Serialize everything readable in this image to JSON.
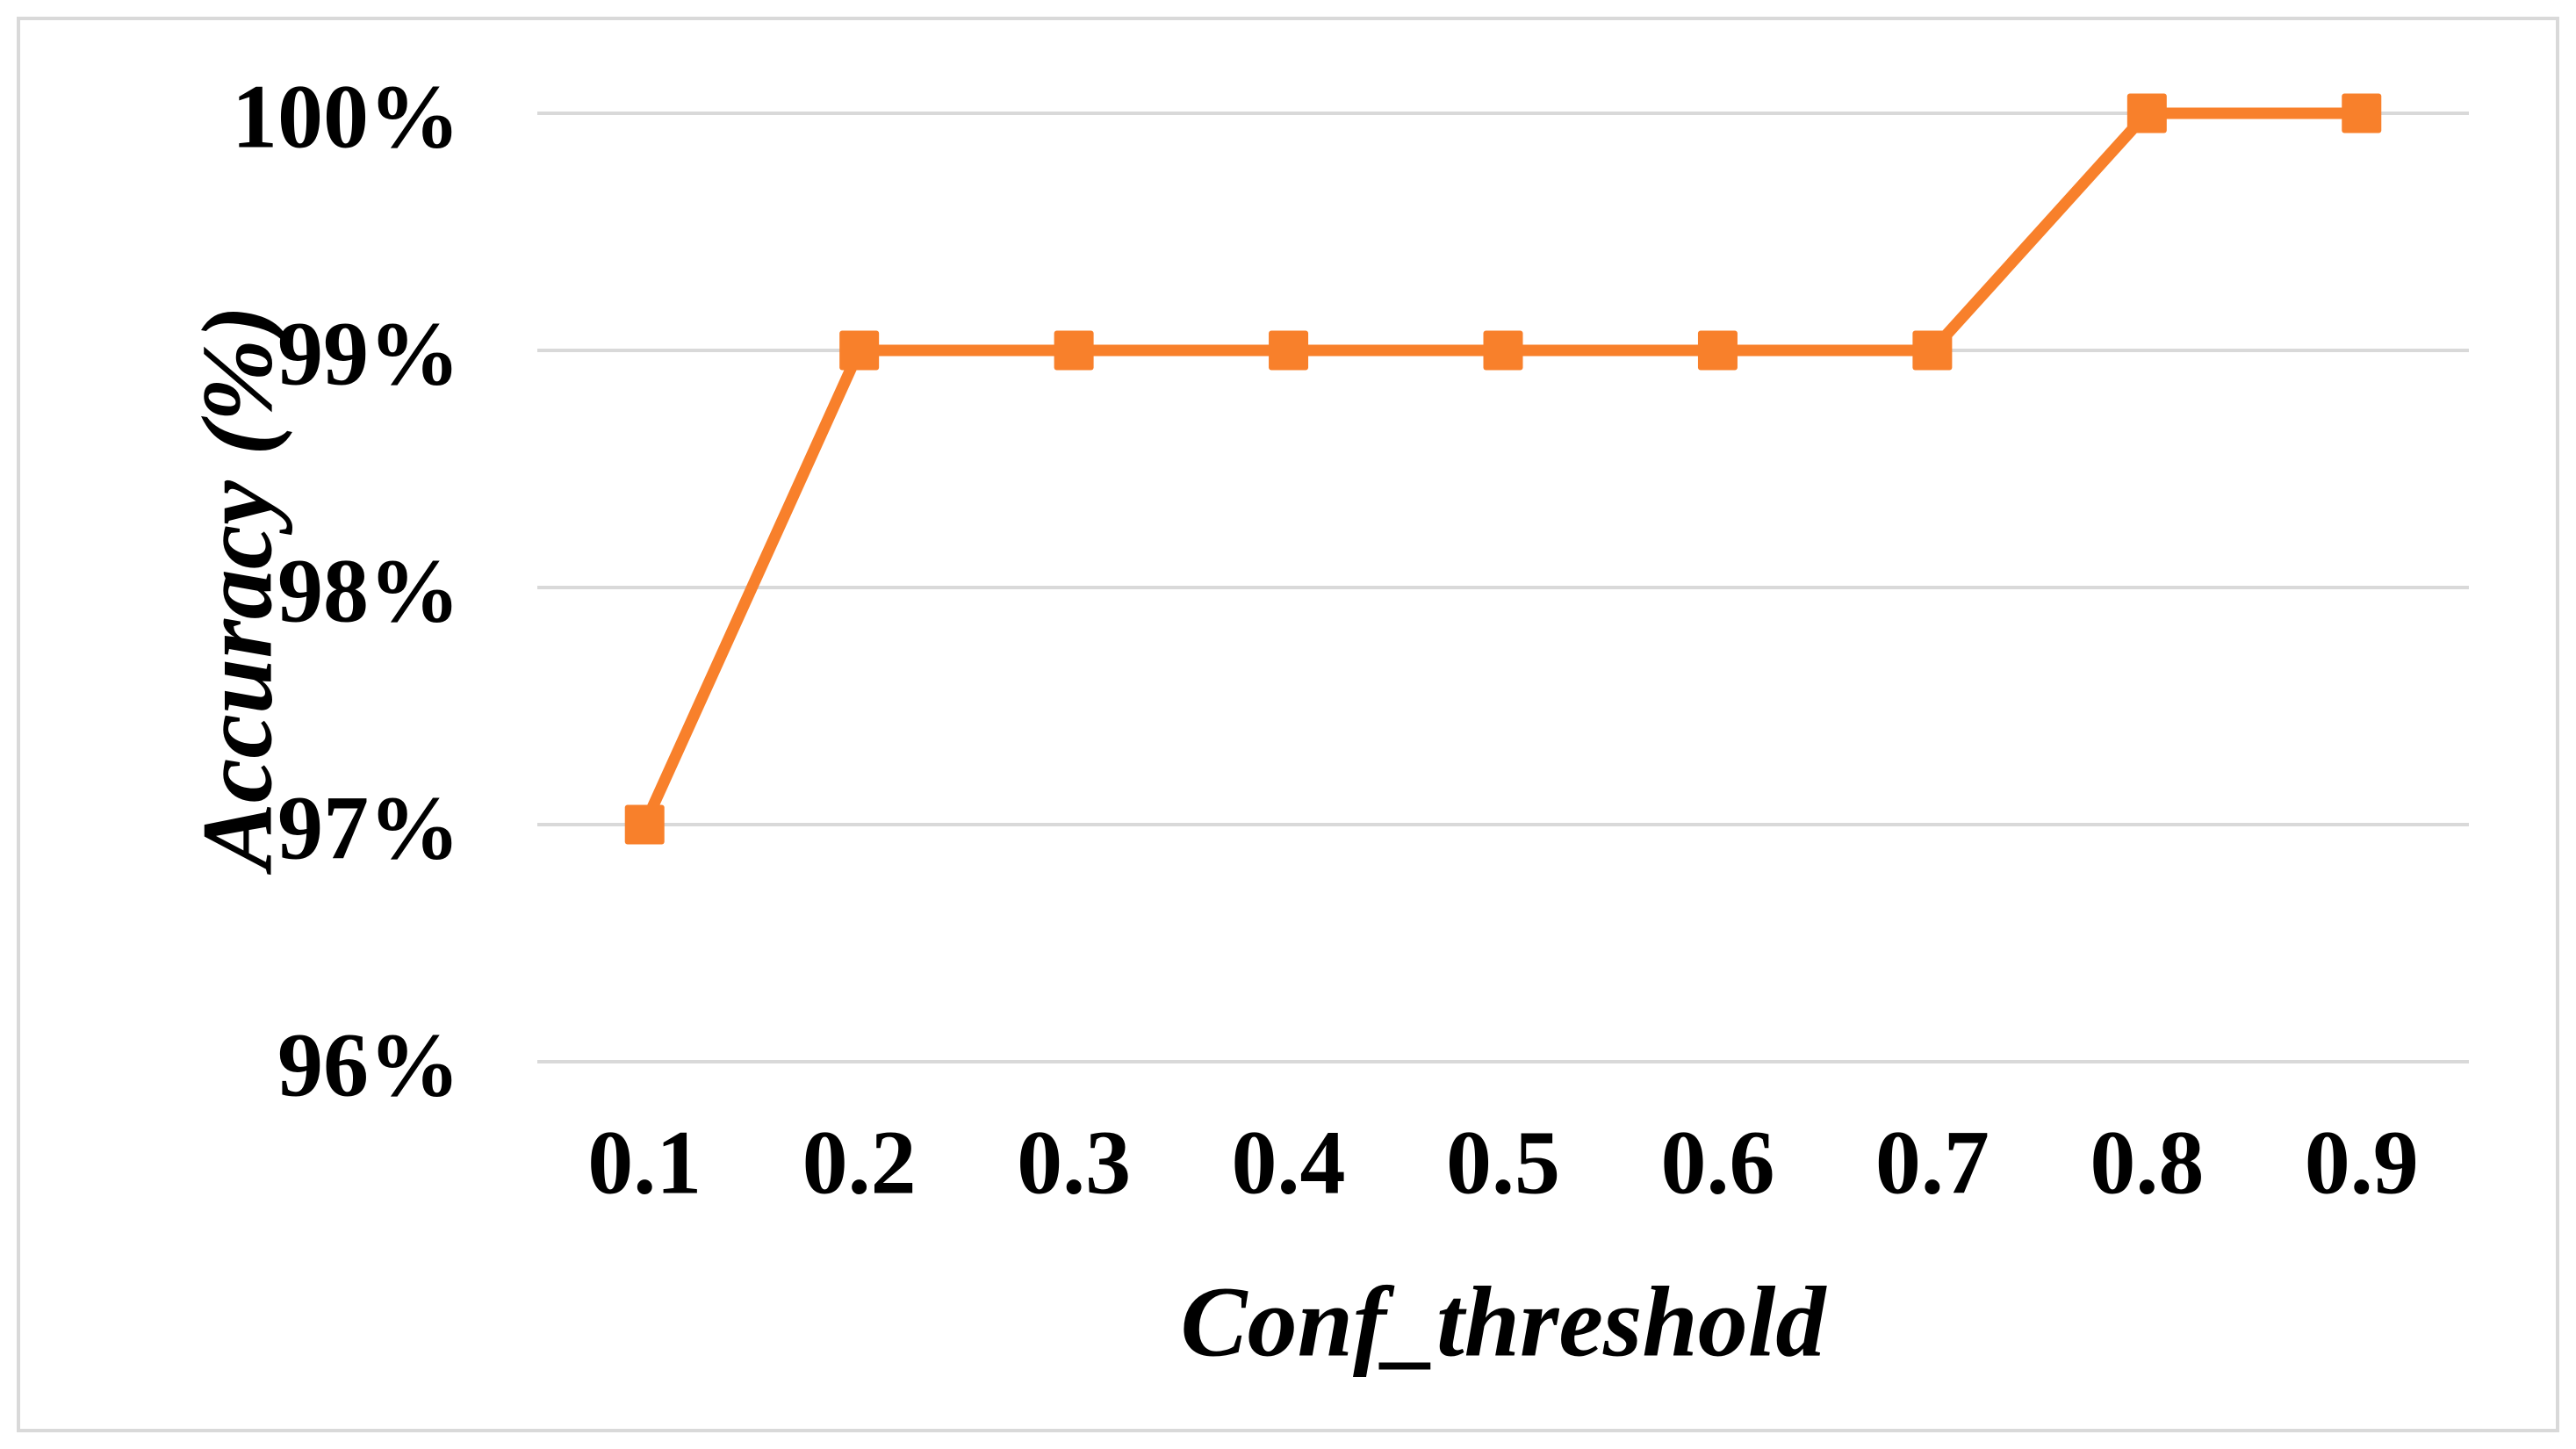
{
  "chart_data": {
    "type": "line",
    "title": "",
    "xlabel": "Conf_threshold",
    "ylabel": "Accuracy (%)",
    "categories": [
      "0.1",
      "0.2",
      "0.3",
      "0.4",
      "0.5",
      "0.6",
      "0.7",
      "0.8",
      "0.9"
    ],
    "x": [
      0.1,
      0.2,
      0.3,
      0.4,
      0.5,
      0.6,
      0.7,
      0.8,
      0.9
    ],
    "series": [
      {
        "name": "Accuracy",
        "values": [
          97,
          99,
          99,
          99,
          99,
          99,
          99,
          100,
          100
        ],
        "color": "#F8802B",
        "marker": "square"
      }
    ],
    "ylim": [
      96,
      100
    ],
    "ytick_step": 1,
    "ytick_labels": [
      "96%",
      "97%",
      "98%",
      "99%",
      "100%"
    ],
    "grid": "horizontal-only",
    "legend_position": "none",
    "colors": {
      "gridline": "#D9D9D9",
      "frame_border": "#D9D9D9",
      "text": "#000000",
      "background": "#FFFFFF"
    }
  }
}
